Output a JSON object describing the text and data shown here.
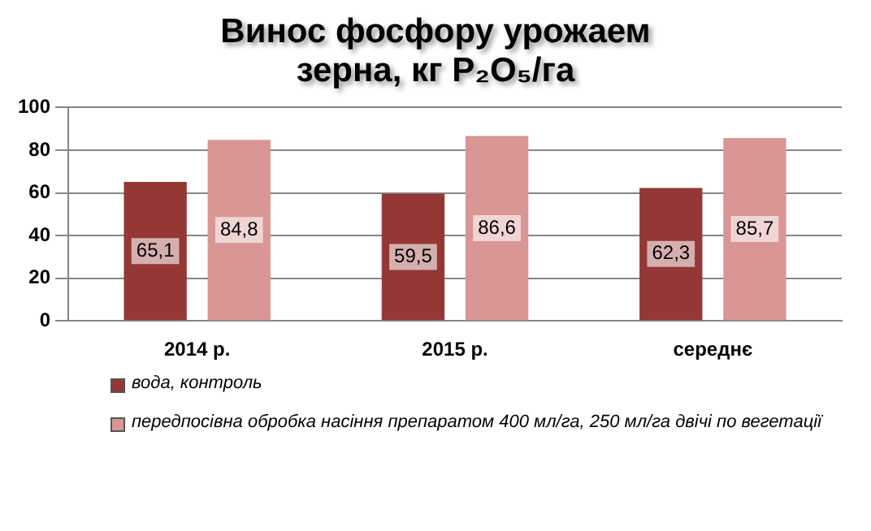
{
  "chart_data": {
    "type": "bar",
    "title": "Винос фосфору урожаем зерна, кг P₂O₅/га",
    "categories": [
      "2014 р.",
      "2015 р.",
      "середнє"
    ],
    "series": [
      {
        "name": "вода, контроль",
        "color": "#953735",
        "values": [
          65.1,
          59.5,
          62.3
        ],
        "value_labels": [
          "65,1",
          "59,5",
          "62,3"
        ]
      },
      {
        "name": "передпосівна обробка насіння препаратом 400 мл/га, 250 мл/га двічі по вегетації",
        "color": "#d99694",
        "values": [
          84.8,
          86.6,
          85.7
        ],
        "value_labels": [
          "84,8",
          "86,6",
          "85,7"
        ]
      }
    ],
    "ylim": [
      0,
      100
    ],
    "yticks": [
      0,
      20,
      40,
      60,
      80,
      100
    ],
    "grid": "y",
    "legend": "bottom"
  }
}
